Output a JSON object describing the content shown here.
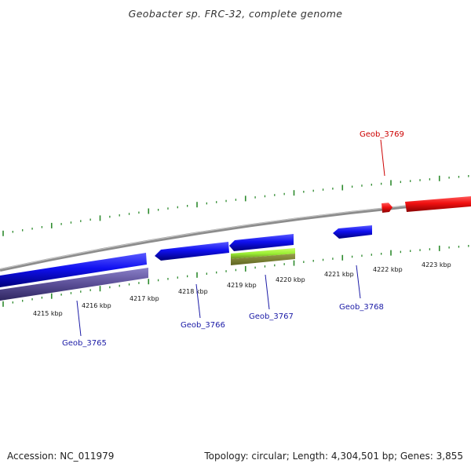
{
  "title": "Geobacter sp. FRC-32, complete genome",
  "footer": {
    "accession": "Accession: NC_011979",
    "summary": "Topology: circular; Length: 4,304,501 bp; Genes: 3,855"
  },
  "scale": {
    "unit": "kbp",
    "labels": [
      "4215 kbp",
      "4216 kbp",
      "4217 kbp",
      "4218 kbp",
      "4219 kbp",
      "4220 kbp",
      "4221 kbp",
      "4222 kbp",
      "4223 kbp"
    ]
  },
  "colors": {
    "backbone": "#888888",
    "forward_gene": "#0000ee",
    "reverse_gene": "#1a1aff",
    "highlight_gene": "#ff0000",
    "rna_gene": "#99ee33",
    "pseudo_gene": "#5a4e96",
    "tick": "#2e8b2e",
    "gene_label": "#1a1aa6",
    "highlight_label": "#cc0000"
  },
  "genes": [
    {
      "name": "Geob_3765",
      "color": "#1a1aa6"
    },
    {
      "name": "Geob_3766",
      "color": "#1a1aa6"
    },
    {
      "name": "Geob_3767",
      "color": "#1a1aa6"
    },
    {
      "name": "Geob_3768",
      "color": "#1a1aa6"
    },
    {
      "name": "Geob_3769",
      "color": "#cc0000"
    }
  ]
}
